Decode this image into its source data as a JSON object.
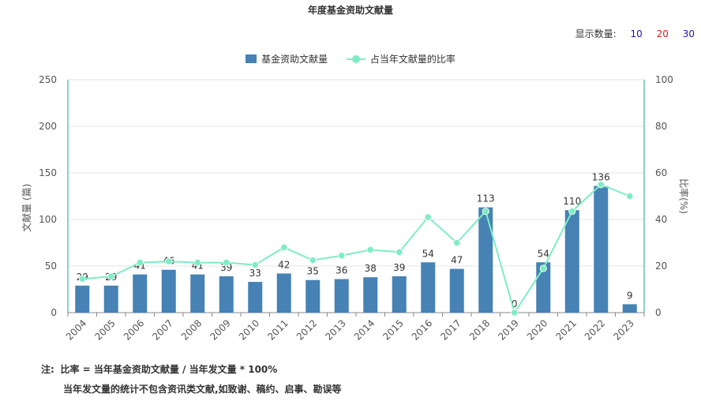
{
  "title": "年度基金资助文献量",
  "display_count": {
    "label": "显示数量:",
    "options": [
      "10",
      "20",
      "30"
    ]
  },
  "legend": {
    "bar_label": "基金资助文献量",
    "line_label": "占当年文献量的比率"
  },
  "colors": {
    "bar": "#4682B4",
    "line": "#7EEDC3",
    "axis": "#1E9D9D",
    "grid": "#E6E6E6"
  },
  "notes": {
    "prefix": "注:",
    "line1": "比率 = 当年基金资助文献量 / 当年发文量 * 100%",
    "line2": "当年发文量的统计不包含资讯类文献,如致谢、稿约、启事、勘误等"
  },
  "chart_data": {
    "type": "bar",
    "title": "年度基金资助文献量",
    "categories": [
      "2004",
      "2005",
      "2006",
      "2007",
      "2008",
      "2009",
      "2010",
      "2011",
      "2012",
      "2013",
      "2014",
      "2015",
      "2016",
      "2017",
      "2018",
      "2019",
      "2020",
      "2021",
      "2022",
      "2023"
    ],
    "series": [
      {
        "name": "基金资助文献量",
        "type": "bar",
        "axis": "left",
        "values": [
          29,
          29,
          41,
          46,
          41,
          39,
          33,
          42,
          35,
          36,
          38,
          39,
          54,
          47,
          113,
          0,
          54,
          110,
          136,
          9
        ]
      },
      {
        "name": "占当年文献量的比率",
        "type": "line",
        "axis": "right",
        "values": [
          14.5,
          15.5,
          21.5,
          22,
          21.5,
          21.5,
          20.5,
          28,
          22.5,
          24.5,
          27,
          26,
          41,
          30,
          43.5,
          0,
          19,
          43.5,
          55,
          50
        ]
      }
    ],
    "ylabel": "文献量 (篇)",
    "y2label": "比率(%)",
    "ylim": [
      0,
      250
    ],
    "y2lim": [
      0,
      100
    ],
    "yticks": [
      0,
      50,
      100,
      150,
      200,
      250
    ],
    "y2ticks": [
      0,
      20,
      40,
      60,
      80,
      100
    ],
    "grid": true,
    "legend_position": "top-center"
  }
}
